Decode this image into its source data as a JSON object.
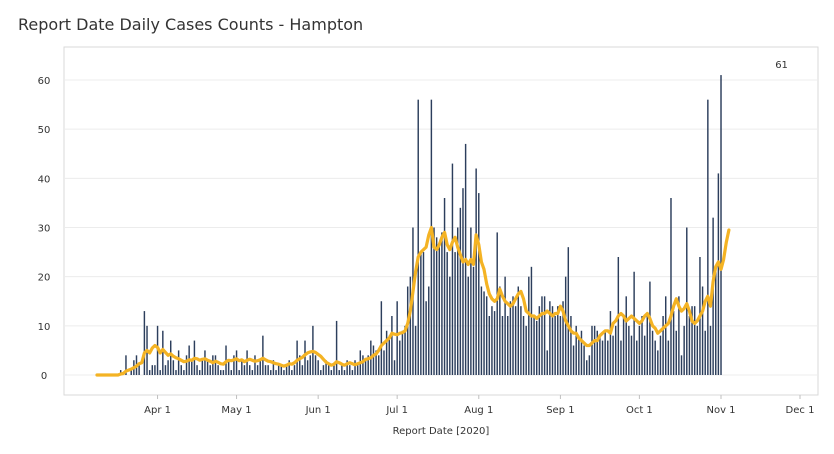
{
  "chart_data": {
    "type": "bar",
    "title": "Report Date Daily Cases Counts - Hampton",
    "xlabel": "Report Date [2020]",
    "ylabel": "",
    "ylim": [
      0,
      65
    ],
    "yticks": [
      0,
      10,
      20,
      30,
      40,
      50,
      60
    ],
    "x_start": "2020-03-09",
    "x_end": "2020-12-01",
    "xticks": [
      {
        "date": "2020-04-01",
        "label": "Apr 1"
      },
      {
        "date": "2020-05-01",
        "label": "May 1"
      },
      {
        "date": "2020-06-01",
        "label": "Jun 1"
      },
      {
        "date": "2020-07-01",
        "label": "Jul 1"
      },
      {
        "date": "2020-08-01",
        "label": "Aug 1"
      },
      {
        "date": "2020-09-01",
        "label": "Sep 1"
      },
      {
        "date": "2020-10-01",
        "label": "Oct 1"
      },
      {
        "date": "2020-11-01",
        "label": "Nov 1"
      },
      {
        "date": "2020-12-01",
        "label": "Dec 1"
      }
    ],
    "grid": true,
    "series": [
      {
        "type": "bar",
        "color": "#2c3e5c",
        "start": "2020-03-09",
        "values": [
          0,
          0,
          0,
          0,
          0,
          0,
          0,
          0,
          0,
          1,
          0,
          4,
          0,
          1,
          3,
          4,
          2,
          0,
          13,
          10,
          1,
          2,
          2,
          10,
          1,
          9,
          2,
          3,
          7,
          3,
          1,
          5,
          2,
          1,
          4,
          6,
          3,
          7,
          2,
          1,
          3,
          5,
          3,
          2,
          4,
          4,
          2,
          1,
          1,
          6,
          3,
          1,
          4,
          5,
          1,
          3,
          2,
          5,
          2,
          1,
          4,
          2,
          3,
          8,
          2,
          2,
          1,
          3,
          1,
          2,
          2,
          1,
          2,
          3,
          1,
          2,
          7,
          4,
          2,
          7,
          3,
          4,
          10,
          4,
          3,
          1,
          2,
          3,
          2,
          1,
          2,
          11,
          1,
          2,
          1,
          3,
          2,
          1,
          3,
          2,
          5,
          4,
          3,
          4,
          7,
          6,
          5,
          4,
          15,
          5,
          9,
          8,
          12,
          3,
          15,
          7,
          9,
          10,
          18,
          20,
          30,
          10,
          56,
          25,
          25,
          15,
          18,
          56,
          30,
          28,
          27,
          29,
          36,
          25,
          20,
          43,
          25,
          30,
          34,
          38,
          47,
          20,
          30,
          22,
          42,
          37,
          18,
          17,
          16,
          12,
          14,
          13,
          29,
          18,
          12,
          20,
          12,
          15,
          16,
          14,
          18,
          14,
          12,
          10,
          20,
          22,
          12,
          11,
          14,
          16,
          16,
          5,
          15,
          14,
          12,
          14,
          12,
          15,
          20,
          26,
          12,
          6,
          10,
          8,
          9,
          6,
          3,
          4,
          10,
          10,
          9,
          8,
          7,
          9,
          7,
          13,
          8,
          10,
          24,
          7,
          12,
          16,
          10,
          8,
          21,
          7,
          10,
          12,
          8,
          12,
          19,
          9,
          7,
          5,
          8,
          12,
          16,
          7,
          36,
          13,
          9,
          16,
          4,
          10,
          30,
          12,
          14,
          14,
          10,
          24,
          18,
          9,
          56,
          10,
          32,
          21,
          41,
          61
        ]
      },
      {
        "type": "line",
        "color": "#f4b324",
        "start": "2020-03-09",
        "values": [
          0,
          0,
          0,
          0,
          0,
          0,
          0,
          0,
          0,
          0.2,
          0.3,
          0.8,
          1,
          1.2,
          1.5,
          1.8,
          2.3,
          2.5,
          4.5,
          5,
          4.5,
          5.5,
          6,
          5.6,
          4.5,
          5.2,
          4.6,
          4,
          4.3,
          3.8,
          3.5,
          3.3,
          3,
          2.7,
          2.8,
          3.1,
          3,
          3.4,
          3.3,
          3,
          3.2,
          3.3,
          3,
          2.8,
          2.5,
          2.8,
          2.6,
          2.3,
          2.2,
          2.7,
          3,
          2.9,
          3.1,
          3.3,
          2.9,
          3.1,
          2.7,
          3,
          3.2,
          3,
          2.8,
          2.9,
          3.1,
          3.4,
          3.1,
          2.8,
          2.7,
          2.5,
          2.3,
          2.2,
          2,
          1.8,
          2,
          2.3,
          2.2,
          2.5,
          3,
          3.3,
          3.6,
          4.1,
          4.5,
          4.7,
          4.8,
          4.6,
          4.2,
          3.8,
          3.2,
          2.6,
          2.3,
          2,
          2.2,
          2.7,
          2.5,
          2.2,
          2,
          2.3,
          2.5,
          2.3,
          2.1,
          2.3,
          2.5,
          2.7,
          3.2,
          3.3,
          3.5,
          4,
          4.3,
          5,
          6,
          6.5,
          7,
          7.5,
          8.5,
          8.3,
          8.2,
          8.5,
          8.6,
          9,
          10.5,
          13,
          17,
          21,
          24,
          25,
          25.5,
          26,
          28.5,
          30,
          26,
          25.5,
          26.5,
          28,
          29,
          26.5,
          25.5,
          27,
          28,
          26,
          24.5,
          23,
          23.5,
          22.5,
          23.5,
          22.5,
          28.5,
          26.5,
          23,
          21.5,
          18.5,
          16.5,
          15.5,
          15,
          15.5,
          17.5,
          16,
          15,
          14.5,
          14,
          14.5,
          15.5,
          16.5,
          17,
          15.5,
          13,
          12.5,
          12,
          12,
          11.5,
          12,
          12.5,
          12.5,
          13,
          12.5,
          12,
          12.5,
          12.5,
          14,
          13,
          11,
          10,
          9,
          8.5,
          8.5,
          7.5,
          7,
          6.5,
          6,
          6,
          6.5,
          7,
          7,
          8,
          8.5,
          9,
          9,
          8.5,
          10.5,
          11,
          12,
          12.5,
          12,
          11,
          11.5,
          12,
          11.5,
          11,
          10.5,
          11,
          12,
          12.5,
          11.5,
          10,
          9.5,
          8.5,
          9,
          9.5,
          10,
          10.5,
          12,
          14,
          15.5,
          14,
          13,
          13.5,
          14.5,
          13,
          11,
          10.5,
          11,
          12,
          13,
          15,
          16,
          14,
          19,
          22,
          23,
          21.5,
          23.5,
          27,
          29.5
        ]
      }
    ],
    "annotations": [
      {
        "date": "2020-11-24",
        "value": 61,
        "label": "61"
      }
    ]
  }
}
